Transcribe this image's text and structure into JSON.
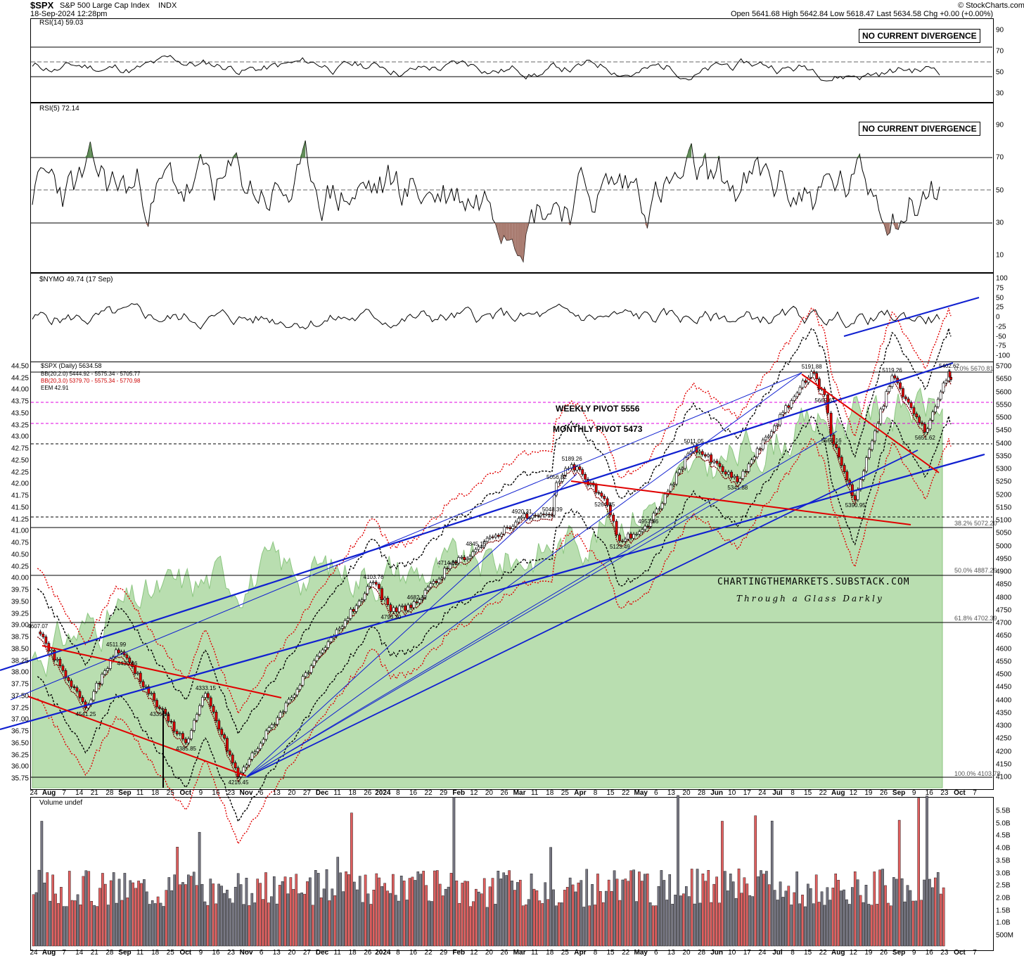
{
  "header": {
    "symbol": "$SPX",
    "name": "S&P 500 Large Cap Index",
    "exchange": "INDX",
    "timestamp": "18-Sep-2024 12:28pm",
    "credit": "© StockCharts.com",
    "ohlc": "Open 5641.68  High 5642.84  Low 5618.47  Last 5634.58  Chg +0.00 (+0.00%)"
  },
  "panels": {
    "rsi14": {
      "label": "RSI(14) 59.03",
      "note": "NO CURRENT DIVERGENCE",
      "ticks": [
        "90",
        "70",
        "50",
        "30"
      ]
    },
    "rsi5": {
      "label": "RSI(5) 72.14",
      "note": "NO CURRENT DIVERGENCE",
      "ticks": [
        "90",
        "70",
        "50",
        "30",
        "10"
      ]
    },
    "nymo": {
      "label": "$NYMO 49.74 (17 Sep)",
      "ticks": [
        "100",
        "75",
        "50",
        "25",
        "0",
        "-25",
        "-50",
        "-75",
        "-100"
      ]
    },
    "price": {
      "legend": [
        "$SPX (Daily) 5634.58",
        "BB(20,2.0) 5444.92 - 5575.34 - 5705.77",
        "BB(20,3.0) 5379.70 - 5575.34 - 5770.98",
        "EEM 42.91"
      ],
      "right_ticks": [
        "5700",
        "5650",
        "5600",
        "5550",
        "5500",
        "5450",
        "5400",
        "5350",
        "5300",
        "5250",
        "5200",
        "5150",
        "5100",
        "5050",
        "5000",
        "4950",
        "4900",
        "4850",
        "4800",
        "4750",
        "4700",
        "4650",
        "4600",
        "4550",
        "4500",
        "4450",
        "4400",
        "4350",
        "4300",
        "4250",
        "4200",
        "4150",
        "4100"
      ],
      "left_ticks": [
        "44.50",
        "44.25",
        "44.00",
        "43.75",
        "43.50",
        "43.25",
        "43.00",
        "42.75",
        "42.50",
        "42.25",
        "42.00",
        "41.75",
        "41.50",
        "41.25",
        "41.00",
        "40.75",
        "40.50",
        "40.25",
        "40.00",
        "39.75",
        "39.50",
        "39.25",
        "39.00",
        "38.75",
        "38.50",
        "38.25",
        "38.00",
        "37.75",
        "37.50",
        "37.25",
        "37.00",
        "36.75",
        "36.50",
        "36.25",
        "36.00",
        "35.75"
      ],
      "weekly_pivot": "WEEKLY PIVOT 5556",
      "monthly_pivot": "MONTHLY PIVOT 5473",
      "watermark": "CHARTINGTHEMARKETS.SUBSTACK.COM",
      "tagline": "Through a Glass Darkly",
      "fib": [
        "0.0% 5670.81",
        "38.2% 5072.20",
        "50.0% 4887.29",
        "61.8% 4702.39",
        "100.0% 4103.78"
      ],
      "annotations": [
        "4607.07",
        "4541.25",
        "4511.99",
        "4430.46",
        "4335.31",
        "4385.85",
        "4333.15",
        "4216.45",
        "4103.78",
        "4793.30",
        "4682.11",
        "4714.82",
        "4845.15",
        "4920.31",
        "5048.39",
        "5056.82",
        "5189.26",
        "5264.85",
        "5123.49",
        "4953.56",
        "5011.05",
        "5341.88",
        "5191.88",
        "5669.67",
        "5566.16",
        "5390.95",
        "5119.26",
        "5651.62",
        "5402.62",
        "5670.81"
      ]
    },
    "volume": {
      "label": "Volume undef",
      "ticks": [
        "5.5B",
        "5.0B",
        "4.5B",
        "4.0B",
        "3.5B",
        "3.0B",
        "2.5B",
        "2.0B",
        "1.5B",
        "1.0B",
        "500M"
      ]
    }
  },
  "xaxis": [
    "24",
    "Aug",
    "7",
    "14",
    "21",
    "28",
    "Sep",
    "11",
    "18",
    "25",
    "Oct",
    "9",
    "16",
    "23",
    "Nov",
    "6",
    "13",
    "20",
    "27",
    "Dec",
    "11",
    "18",
    "26",
    "2024",
    "8",
    "16",
    "22",
    "29",
    "Feb",
    "12",
    "20",
    "26",
    "Mar",
    "11",
    "18",
    "25",
    "Apr",
    "8",
    "15",
    "22",
    "May",
    "6",
    "13",
    "20",
    "28",
    "Jun",
    "10",
    "17",
    "24",
    "Jul",
    "8",
    "15",
    "22",
    "Aug",
    "12",
    "19",
    "26",
    "Sep",
    "9",
    "16",
    "23",
    "Oct",
    "7"
  ],
  "chart_data": {
    "type": "line",
    "title": "$SPX S&P 500 Large Cap Index INDX",
    "x_range": [
      "2023-07-24",
      "2024-10-07"
    ],
    "series": [
      {
        "name": "$SPX (Daily)",
        "pivots": [
          [
            "2023-07-27",
            4607.07
          ],
          [
            "2023-08-18",
            4335.31
          ],
          [
            "2023-09-01",
            4541.25
          ],
          [
            "2023-09-06",
            4511.99
          ],
          [
            "2023-09-21",
            4333.15
          ],
          [
            "2023-10-03",
            4216.45
          ],
          [
            "2023-10-12",
            4385.85
          ],
          [
            "2023-10-27",
            4103.78
          ],
          [
            "2023-12-28",
            4793.3
          ],
          [
            "2024-01-05",
            4682.11
          ],
          [
            "2024-01-17",
            4714.82
          ],
          [
            "2024-01-31",
            4845.15
          ],
          [
            "2024-02-13",
            4920.31
          ],
          [
            "2024-03-05",
            5048.39
          ],
          [
            "2024-03-19",
            5056.82
          ],
          [
            "2024-03-21",
            5189.26
          ],
          [
            "2024-03-28",
            5264.85
          ],
          [
            "2024-04-12",
            5123.49
          ],
          [
            "2024-04-19",
            4953.56
          ],
          [
            "2024-05-02",
            5011.05
          ],
          [
            "2024-05-23",
            5341.88
          ],
          [
            "2024-06-12",
            5191.88
          ],
          [
            "2024-07-16",
            5669.67
          ],
          [
            "2024-07-22",
            5566.16
          ],
          [
            "2024-07-25",
            5390.95
          ],
          [
            "2024-08-05",
            5119.26
          ],
          [
            "2024-08-22",
            5651.62
          ],
          [
            "2024-09-06",
            5402.62
          ],
          [
            "2024-09-17",
            5670.81
          ],
          [
            "2024-09-18",
            5634.58
          ]
        ]
      },
      {
        "name": "RSI(14)",
        "last": 59.03
      },
      {
        "name": "RSI(5)",
        "last": 72.14
      },
      {
        "name": "$NYMO",
        "last": 49.74
      },
      {
        "name": "EEM",
        "last": 42.91
      }
    ],
    "ylim_price": [
      4100,
      5700
    ],
    "ylim_eem": [
      35.75,
      44.5
    ],
    "grid": false,
    "colors": {
      "fill_eem": "#b9deb0",
      "up_rsi": "#4f7f45",
      "down_rsi": "#a06e62",
      "trend": "#1020d0",
      "red": "#e00000",
      "pivot": "#e000e0"
    }
  }
}
